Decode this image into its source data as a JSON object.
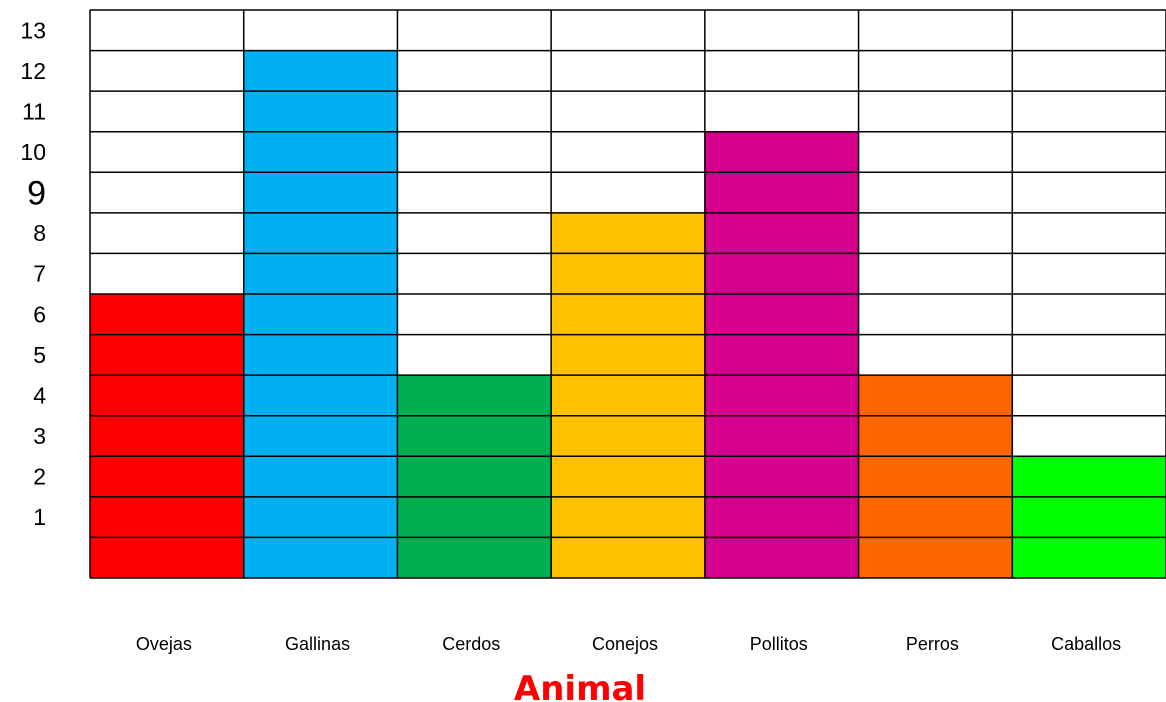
{
  "chart_data": {
    "type": "bar",
    "categories": [
      "Ovejas",
      "Gallinas",
      "Cerdos",
      "Conejos",
      "Pollitos",
      "Perros",
      "Caballos"
    ],
    "values": [
      7,
      13,
      5,
      9,
      11,
      5,
      3
    ],
    "colors": [
      "#ff0000",
      "#00b0f0",
      "#00b050",
      "#ffc000",
      "#d6008f",
      "#ff6600",
      "#00ff00"
    ],
    "xlabel": "Animal",
    "xlabel_color": "#ff0000",
    "ylabel": "",
    "yticks": [
      "1",
      "2",
      "3",
      "4",
      "5",
      "6",
      "7",
      "8",
      "9",
      "10",
      "11",
      "12",
      "13"
    ],
    "ylim": [
      0,
      13
    ],
    "grid_rows": 13,
    "grid": true
  }
}
